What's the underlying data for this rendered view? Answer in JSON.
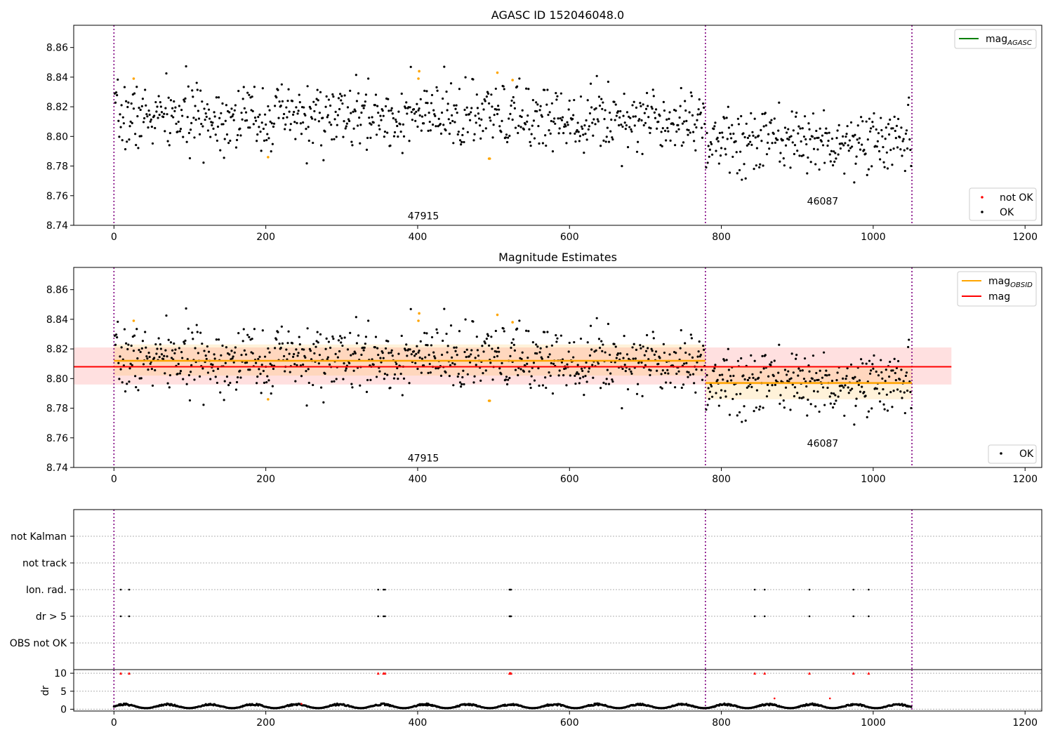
{
  "chart_data": [
    {
      "type": "scatter",
      "title": "AGASC ID 152046048.0",
      "xlim": [
        -53,
        1222
      ],
      "ylim": [
        8.74,
        8.875
      ],
      "x_ticks": [
        0,
        200,
        400,
        600,
        800,
        1000,
        1200
      ],
      "y_ticks": [
        8.74,
        8.76,
        8.78,
        8.8,
        8.82,
        8.84,
        8.86
      ],
      "obsid_boundaries": [
        0,
        779,
        1051
      ],
      "obsid_labels": [
        {
          "text": "47915",
          "x": 389,
          "y": 8.744
        },
        {
          "text": "46087",
          "x": 915,
          "y": 8.754
        }
      ],
      "legend_top": [
        {
          "label": "mag",
          "sub": "AGASC",
          "color": "#008000"
        }
      ],
      "legend_bottom": [
        {
          "label": "not OK",
          "color": "#ff0000"
        },
        {
          "label": "OK",
          "color": "#000000"
        }
      ],
      "series": [
        {
          "name": "OK",
          "color": "#000000",
          "segments": [
            {
              "x0": 0,
              "x1": 779,
              "mean": 8.813,
              "std": 0.011,
              "seed": 7
            },
            {
              "x0": 779,
              "x1": 1051,
              "mean": 8.797,
              "std": 0.011,
              "seed": 13
            }
          ]
        },
        {
          "name": "not OK",
          "color": "#ffa500",
          "points": [
            [
              26,
              8.839
            ],
            [
              203,
              8.786
            ],
            [
              401,
              8.839
            ],
            [
              402,
              8.844
            ],
            [
              494,
              8.785
            ],
            [
              495,
              8.785
            ],
            [
              505,
              8.843
            ],
            [
              525,
              8.838
            ]
          ]
        }
      ]
    },
    {
      "type": "scatter",
      "title": "Magnitude Estimates",
      "xlim": [
        -53,
        1222
      ],
      "ylim": [
        8.74,
        8.875
      ],
      "x_ticks": [
        0,
        200,
        400,
        600,
        800,
        1000,
        1200
      ],
      "y_ticks": [
        8.74,
        8.76,
        8.78,
        8.8,
        8.82,
        8.84,
        8.86
      ],
      "obsid_boundaries": [
        0,
        779,
        1051
      ],
      "obsid_labels": [
        {
          "text": "47915",
          "x": 389,
          "y": 8.744
        },
        {
          "text": "46087",
          "x": 915,
          "y": 8.754
        }
      ],
      "legend_top": [
        {
          "label": "mag",
          "sub": "OBSID",
          "color": "#ffa500"
        },
        {
          "label": "mag",
          "sub": "",
          "color": "#ff0000"
        }
      ],
      "legend_bottom": [
        {
          "label": "OK",
          "color": "#000000"
        }
      ],
      "mag": {
        "value": 8.808,
        "band": [
          8.796,
          8.821
        ],
        "x0": -53,
        "x1": 1103
      },
      "mag_obsid": [
        {
          "x0": 0,
          "x1": 779,
          "value": 8.812,
          "band": [
            8.802,
            8.823
          ]
        },
        {
          "x0": 779,
          "x1": 1051,
          "value": 8.797,
          "band": [
            8.786,
            8.808
          ]
        }
      ]
    },
    {
      "type": "scatter",
      "xlim": [
        -53,
        1222
      ],
      "categories": [
        "not Kalman",
        "not track",
        "Ion. rad.",
        "dr > 5",
        "OBS not OK"
      ],
      "flag_x": [
        9,
        20,
        348,
        355,
        357,
        521,
        522,
        523,
        844,
        857,
        916,
        974,
        994
      ],
      "obsid_boundaries": [
        0,
        779,
        1051
      ]
    },
    {
      "type": "scatter",
      "xlim": [
        -53,
        1222
      ],
      "ylim": [
        -0.5,
        11
      ],
      "ylabel": "dr",
      "x_ticks": [
        0,
        200,
        400,
        600,
        800,
        1000,
        1200
      ],
      "y_ticks": [
        0,
        5,
        10
      ],
      "clipped_value": 10,
      "clipped_x": [
        9,
        20,
        348,
        355,
        357,
        521,
        522,
        523,
        844,
        857,
        916,
        974,
        994
      ],
      "extra_points": [
        [
          870,
          3
        ],
        [
          943,
          3
        ],
        [
          247,
          1.5
        ]
      ],
      "series_range": [
        0,
        1051
      ],
      "typical_dr": [
        0.3,
        1.6
      ],
      "obsid_boundaries": [
        0,
        779,
        1051
      ]
    }
  ]
}
